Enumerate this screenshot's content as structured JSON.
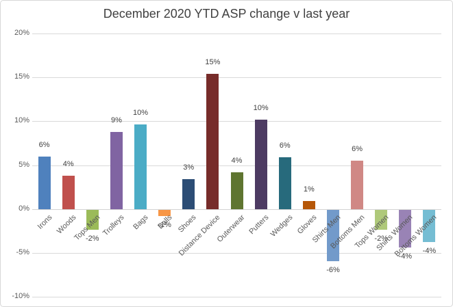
{
  "title": "December 2020 YTD ASP change v last year",
  "chart_data": {
    "type": "bar",
    "title": "December 2020 YTD ASP change v last year",
    "categories": [
      "Irons",
      "Woods",
      "Tops Men",
      "Trolleys",
      "Bags",
      "Balls",
      "Shoes",
      "Distance Device",
      "Outerwear",
      "Putters",
      "Wedges",
      "Gloves",
      "Shirts Men",
      "Bottoms Men",
      "Tops Women",
      "Shirts Women",
      "Bottoms Women"
    ],
    "values": [
      6,
      4,
      -2,
      9,
      10,
      -1,
      3,
      15,
      4,
      10,
      6,
      1,
      -6,
      6,
      -2,
      -4,
      -4
    ],
    "values_precise_pct": [
      6.0,
      3.8,
      -2.3,
      8.8,
      9.6,
      -0.7,
      3.4,
      15.4,
      4.2,
      10.2,
      5.9,
      0.9,
      -5.9,
      5.5,
      -2.3,
      -4.3,
      -3.7
    ],
    "data_labels": [
      "6%",
      "4%",
      "-2%",
      "9%",
      "10%",
      "-1%",
      "3%",
      "15%",
      "4%",
      "10%",
      "6%",
      "1%",
      "-6%",
      "6%",
      "-2%",
      "-4%",
      "-4%"
    ],
    "bar_colors": [
      "#4F81BD",
      "#C0504D",
      "#9BBB59",
      "#8064A2",
      "#4BACC6",
      "#F79646",
      "#2C4D75",
      "#772C2A",
      "#5F7530",
      "#4D3B62",
      "#276A7C",
      "#B65708",
      "#729ACA",
      "#D08885",
      "#AFC97A",
      "#9983B5",
      "#75BDD3"
    ],
    "y_ticks": [
      "20%",
      "15%",
      "10%",
      "5%",
      "0%",
      "-5%",
      "-10%"
    ],
    "y_tick_values": [
      20,
      15,
      10,
      5,
      0,
      -5,
      -10
    ],
    "ylim": [
      -10,
      20
    ],
    "xlabel": "",
    "ylabel": "",
    "grid": true,
    "legend": "none",
    "gridline_color": "#d9d9d9",
    "title_color": "#404040",
    "axis_text_color": "#595959",
    "data_label_color": "#3f3f3f"
  }
}
